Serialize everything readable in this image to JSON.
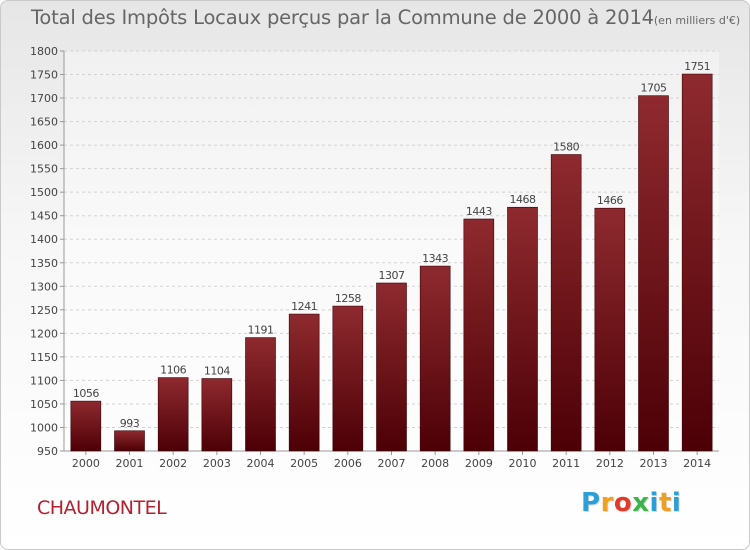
{
  "chart_data": {
    "type": "bar",
    "title": "Total des Impôts Locaux perçus par la Commune de 2000 à 2014",
    "unit_note": "(en milliers d'€)",
    "categories": [
      "2000",
      "2001",
      "2002",
      "2003",
      "2004",
      "2005",
      "2006",
      "2007",
      "2008",
      "2009",
      "2010",
      "2011",
      "2012",
      "2013",
      "2014"
    ],
    "values": [
      1056,
      993,
      1106,
      1104,
      1191,
      1241,
      1258,
      1307,
      1343,
      1443,
      1468,
      1580,
      1466,
      1705,
      1751
    ],
    "ylim": [
      950,
      1800
    ],
    "yticks": [
      950,
      1000,
      1050,
      1100,
      1150,
      1200,
      1250,
      1300,
      1350,
      1400,
      1450,
      1500,
      1550,
      1600,
      1650,
      1700,
      1750,
      1800
    ],
    "xlabel": "",
    "ylabel": "",
    "grid": true,
    "bar_color": "#7a1a20"
  },
  "commune_name": "CHAUMONTEL",
  "brand": {
    "letters": [
      "P",
      "r",
      "o",
      "x",
      "i",
      "t",
      "i"
    ],
    "colors": [
      "#2a9fd8",
      "#f0a020",
      "#e23b2a",
      "#3db34a",
      "#2a9fd8",
      "#f0a020",
      "#2a9fd8"
    ]
  }
}
